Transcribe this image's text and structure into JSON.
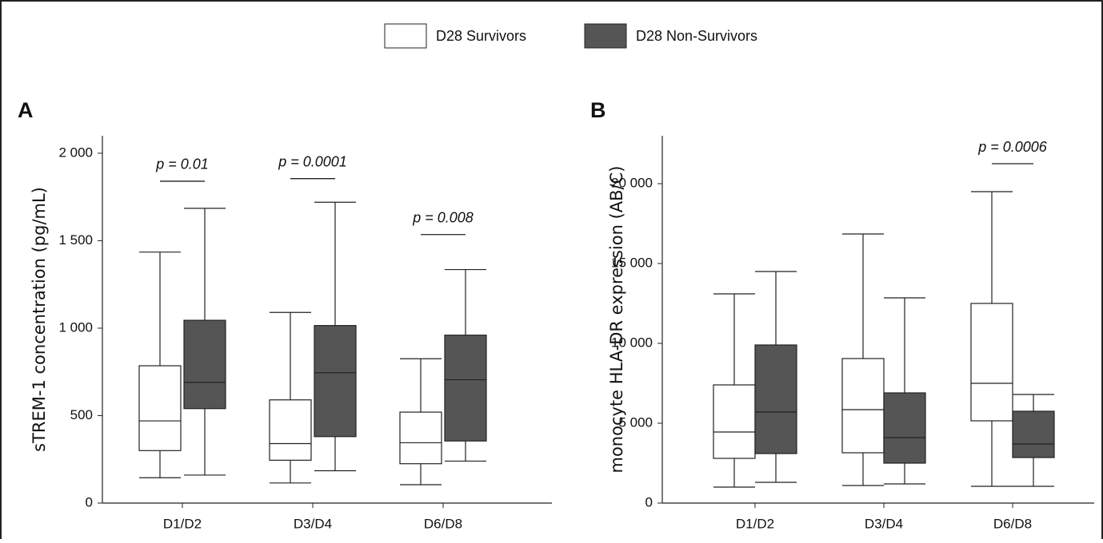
{
  "chart_data": [
    {
      "type": "box",
      "panel_label": "A",
      "y_label": "sTREM-1 concentration (pg/mL)",
      "categories": [
        "D1/D2",
        "D3/D4",
        "D6/D8"
      ],
      "ylim": [
        0,
        2100
      ],
      "yticks": [
        0,
        500,
        {
          "value": 1000,
          "label": "1 000"
        },
        {
          "value": 1500,
          "label": "1 500"
        },
        {
          "value": 2000,
          "label": "2 000"
        }
      ],
      "series": [
        {
          "name": "D28 Survivors",
          "color": "#ffffff",
          "min": [
            145,
            115,
            105
          ],
          "q1": [
            300,
            245,
            225
          ],
          "median": [
            470,
            340,
            345
          ],
          "q3": [
            785,
            590,
            520
          ],
          "max": [
            1435,
            1090,
            825
          ]
        },
        {
          "name": "D28 Non-Survivors",
          "color": "#555555",
          "min": [
            160,
            185,
            240
          ],
          "q1": [
            540,
            380,
            355
          ],
          "median": [
            690,
            745,
            705
          ],
          "q3": [
            1045,
            1015,
            960
          ],
          "max": [
            1685,
            1720,
            1335
          ]
        }
      ],
      "annotations": [
        {
          "text": "p = 0.01",
          "category": "D1/D2",
          "y": 1840
        },
        {
          "text": "p = 0.0001",
          "category": "D3/D4",
          "y": 1855
        },
        {
          "text": "p = 0.008",
          "category": "D6/D8",
          "y": 1535
        }
      ]
    },
    {
      "type": "box",
      "panel_label": "B",
      "y_label": "monocyte HLA-DR expression (AB/C)",
      "categories": [
        "D1/D2",
        "D3/D4",
        "D6/D8"
      ],
      "ylim": [
        0,
        23000
      ],
      "yticks": [
        0,
        {
          "value": 5000,
          "label": "5 000"
        },
        {
          "value": 10000,
          "label": "10 000"
        },
        {
          "value": 15000,
          "label": "15 000"
        },
        {
          "value": 20000,
          "label": "20 000"
        }
      ],
      "series": [
        {
          "color": "#ffffff",
          "min": [
            1000,
            1100,
            1050
          ],
          "q1": [
            2800,
            3150,
            5150
          ],
          "median": [
            4450,
            5850,
            7500
          ],
          "q3": [
            7400,
            9050,
            12500
          ],
          "max": [
            13100,
            16850,
            19500
          ]
        },
        {
          "color": "#555555",
          "min": [
            1300,
            1200,
            1050
          ],
          "q1": [
            3100,
            2500,
            2850
          ],
          "median": [
            5700,
            4100,
            3700
          ],
          "q3": [
            9900,
            6900,
            5750
          ],
          "max": [
            14500,
            12850,
            6800
          ]
        }
      ],
      "annotations": [
        {
          "text": "p = 0.0006",
          "category": "D6/D8",
          "y": 21250
        }
      ]
    }
  ]
}
